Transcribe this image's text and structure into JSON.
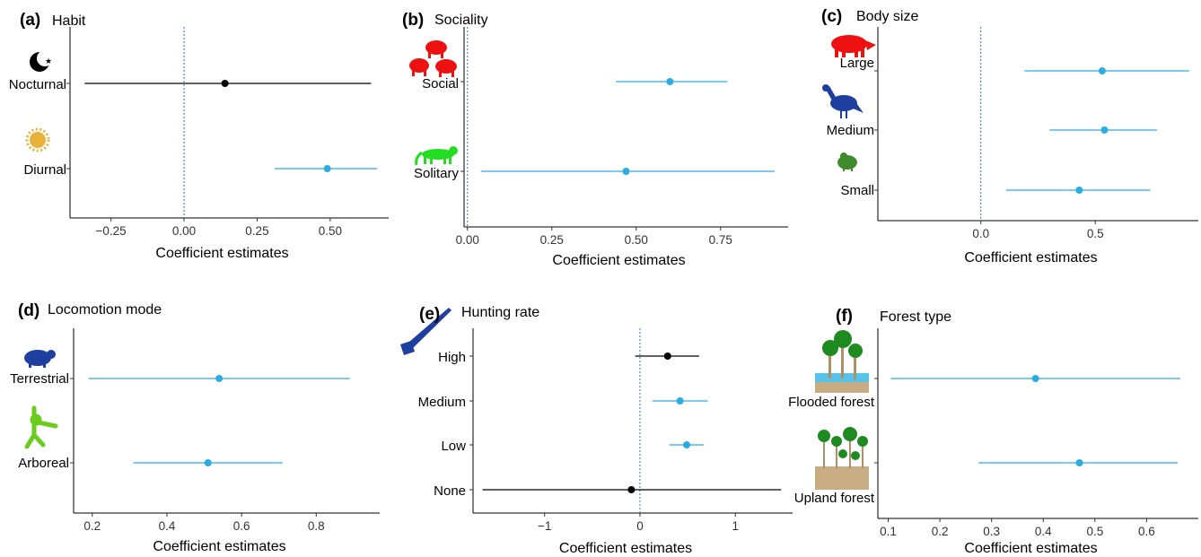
{
  "colors": {
    "blue": "#2bace2",
    "black": "#000000",
    "zero_line": "#2b7bc0",
    "axis": "#000000"
  },
  "chart_data": [
    {
      "type": "scatter",
      "panel": "(a)",
      "title": "Habit",
      "xlabel": "Coefficient estimates",
      "xlim": [
        -0.39,
        0.7
      ],
      "xticks": [
        -0.25,
        0.0,
        0.25,
        0.5
      ],
      "xtick_labels": [
        "−0.25",
        "0.00",
        "0.25",
        "0.50"
      ],
      "categories": [
        {
          "label": "Nocturnal",
          "estimate": 0.14,
          "lower": -0.34,
          "upper": 0.64,
          "color": "#000000",
          "icon": "moon-icon"
        },
        {
          "label": "Diurnal",
          "estimate": 0.49,
          "lower": 0.31,
          "upper": 0.66,
          "color": "#2bace2",
          "icon": "sun-icon"
        }
      ]
    },
    {
      "type": "scatter",
      "panel": "(b)",
      "title": "Sociality",
      "xlabel": "Coefficient estimates",
      "xlim": [
        -0.01,
        0.95
      ],
      "xticks": [
        0.0,
        0.25,
        0.5,
        0.75
      ],
      "xtick_labels": [
        "0.00",
        "0.25",
        "0.50",
        "0.75"
      ],
      "categories": [
        {
          "label": "Social",
          "estimate": 0.6,
          "lower": 0.44,
          "upper": 0.77,
          "color": "#2bace2",
          "icon": "peccary-herd-icon"
        },
        {
          "label": "Solitary",
          "estimate": 0.47,
          "lower": 0.04,
          "upper": 0.91,
          "color": "#2bace2",
          "icon": "jaguar-icon"
        }
      ]
    },
    {
      "type": "scatter",
      "panel": "(c)",
      "title": "Body size",
      "xlabel": "Coefficient estimates",
      "xlim": [
        -0.45,
        0.95
      ],
      "xticks": [
        0.0,
        0.5
      ],
      "xtick_labels": [
        "0.0",
        "0.5"
      ],
      "categories": [
        {
          "label": "Large",
          "estimate": 0.53,
          "lower": 0.19,
          "upper": 0.91,
          "color": "#2bace2",
          "icon": "tapir-icon"
        },
        {
          "label": "Medium",
          "estimate": 0.54,
          "lower": 0.3,
          "upper": 0.77,
          "color": "#2bace2",
          "icon": "curassow-icon"
        },
        {
          "label": "Small",
          "estimate": 0.43,
          "lower": 0.11,
          "upper": 0.74,
          "color": "#2bace2",
          "icon": "rodent-icon"
        }
      ]
    },
    {
      "type": "scatter",
      "panel": "(d)",
      "title": "Locomotion mode",
      "xlabel": "Coefficient estimates",
      "xlim": [
        0.15,
        0.97
      ],
      "xticks": [
        0.2,
        0.4,
        0.6,
        0.8
      ],
      "xtick_labels": [
        "0.2",
        "0.4",
        "0.6",
        "0.8"
      ],
      "categories": [
        {
          "label": "Terrestrial",
          "estimate": 0.54,
          "lower": 0.19,
          "upper": 0.89,
          "color": "#2bace2",
          "icon": "capybara-icon"
        },
        {
          "label": "Arboreal",
          "estimate": 0.51,
          "lower": 0.31,
          "upper": 0.71,
          "color": "#2bace2",
          "icon": "monkey-icon"
        }
      ]
    },
    {
      "type": "scatter",
      "panel": "(e)",
      "title": "Hunting rate",
      "xlabel": "Coefficient estimates",
      "xlim": [
        -1.75,
        1.6
      ],
      "xticks": [
        -1,
        0,
        1
      ],
      "xtick_labels": [
        "−1",
        "0",
        "1"
      ],
      "categories": [
        {
          "label": "High",
          "estimate": 0.29,
          "lower": -0.05,
          "upper": 0.62,
          "color": "#000000",
          "icon": "rifle-icon"
        },
        {
          "label": "Medium",
          "estimate": 0.42,
          "lower": 0.13,
          "upper": 0.71,
          "color": "#2bace2",
          "icon": ""
        },
        {
          "label": "Low",
          "estimate": 0.49,
          "lower": 0.31,
          "upper": 0.67,
          "color": "#2bace2",
          "icon": ""
        },
        {
          "label": "None",
          "estimate": -0.09,
          "lower": -1.65,
          "upper": 1.48,
          "color": "#000000",
          "icon": ""
        }
      ]
    },
    {
      "type": "scatter",
      "panel": "(f)",
      "title": "Forest type",
      "xlabel": "Coefficient estimates",
      "xlim": [
        0.08,
        0.7
      ],
      "xticks": [
        0.1,
        0.2,
        0.3,
        0.4,
        0.5,
        0.6
      ],
      "xtick_labels": [
        "0.1",
        "0.2",
        "0.3",
        "0.4",
        "0.5",
        "0.6"
      ],
      "categories": [
        {
          "label": "Flooded forest",
          "estimate": 0.385,
          "lower": 0.105,
          "upper": 0.665,
          "color": "#2bace2",
          "icon": "flooded-forest-icon"
        },
        {
          "label": "Upland forest",
          "estimate": 0.47,
          "lower": 0.275,
          "upper": 0.66,
          "color": "#2bace2",
          "icon": "upland-forest-icon"
        }
      ]
    }
  ]
}
